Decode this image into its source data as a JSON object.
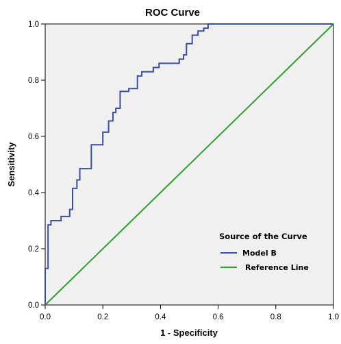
{
  "chart_data": {
    "type": "line",
    "title": "ROC Curve",
    "xlabel": "1 - Specificity",
    "ylabel": "Sensitivity",
    "xlim": [
      0,
      1
    ],
    "ylim": [
      0,
      1
    ],
    "x_ticks": [
      "0.0",
      "0.2",
      "0.4",
      "0.6",
      "0.8",
      "1.0"
    ],
    "y_ticks": [
      "0.0",
      "0.2",
      "0.4",
      "0.6",
      "0.8",
      "1.0"
    ],
    "grid": false,
    "background_color": "#f0f0f0",
    "legend": {
      "title": "Source of the Curve",
      "placement": "bottom-right"
    },
    "series": [
      {
        "name": "Model B",
        "color": "#3c4f9e",
        "step": true,
        "x": [
          0.0,
          0.0,
          0.01,
          0.01,
          0.02,
          0.02,
          0.035,
          0.035,
          0.055,
          0.055,
          0.085,
          0.085,
          0.095,
          0.095,
          0.11,
          0.11,
          0.12,
          0.12,
          0.16,
          0.16,
          0.2,
          0.2,
          0.22,
          0.22,
          0.235,
          0.235,
          0.245,
          0.245,
          0.26,
          0.26,
          0.27,
          0.27,
          0.29,
          0.29,
          0.32,
          0.32,
          0.335,
          0.335,
          0.375,
          0.375,
          0.395,
          0.395,
          0.465,
          0.465,
          0.48,
          0.48,
          0.49,
          0.49,
          0.51,
          0.51,
          0.53,
          0.53,
          0.55,
          0.55,
          0.565,
          0.565,
          0.59,
          0.59,
          1.0
        ],
        "y": [
          0.0,
          0.13,
          0.13,
          0.285,
          0.285,
          0.3,
          0.3,
          0.3,
          0.3,
          0.315,
          0.315,
          0.34,
          0.34,
          0.415,
          0.415,
          0.445,
          0.445,
          0.485,
          0.485,
          0.57,
          0.57,
          0.615,
          0.615,
          0.655,
          0.655,
          0.685,
          0.685,
          0.7,
          0.7,
          0.76,
          0.76,
          0.76,
          0.76,
          0.77,
          0.77,
          0.815,
          0.815,
          0.83,
          0.83,
          0.845,
          0.845,
          0.86,
          0.86,
          0.875,
          0.875,
          0.89,
          0.89,
          0.93,
          0.93,
          0.96,
          0.96,
          0.975,
          0.975,
          0.985,
          0.985,
          1.0,
          1.0,
          1.0,
          1.0
        ]
      },
      {
        "name": "Reference Line",
        "color": "#2ca02c",
        "x": [
          0,
          1
        ],
        "y": [
          0,
          1
        ]
      }
    ]
  }
}
